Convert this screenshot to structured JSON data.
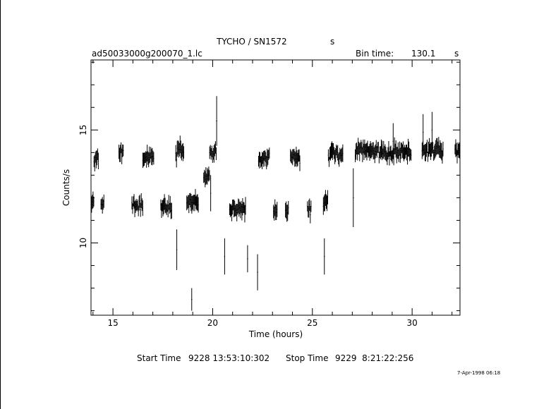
{
  "header": {
    "title": "TYCHO / SN1572",
    "title_unit": "s",
    "file_name": "ad50033000g200070_1.lc",
    "bin_time_label": "Bin time:",
    "bin_time_value": "130.1",
    "bin_time_unit": "s"
  },
  "footer": {
    "start_time_label": "Start Time",
    "start_time_value": "9228 13:53:10:302",
    "stop_time_label": "Stop Time",
    "stop_time_value": "9229  8:21:22:256",
    "print_stamp": "7-Apr-1998 06:18"
  },
  "chart_data": {
    "type": "scatter",
    "style": "light curve with vertical error bars",
    "xlabel": "Time (hours)",
    "ylabel": "Counts/s",
    "xlim": [
      13.9,
      32.4
    ],
    "ylim": [
      6.8,
      18.1
    ],
    "xticks": [
      15,
      20,
      25,
      30
    ],
    "yticks": [
      10,
      15
    ],
    "grid": false,
    "color": "#000000",
    "segments": [
      {
        "name": "seg-1",
        "t_start": 13.93,
        "t_end": 14.05,
        "mean": 11.8,
        "scatter": 0.35
      },
      {
        "name": "seg-2",
        "t_start": 14.05,
        "t_end": 14.3,
        "mean": 13.7,
        "scatter": 0.35
      },
      {
        "name": "seg-3",
        "t_start": 14.4,
        "t_end": 14.55,
        "mean": 11.8,
        "scatter": 0.3
      },
      {
        "name": "seg-4",
        "t_start": 15.3,
        "t_end": 15.52,
        "mean": 14.0,
        "scatter": 0.25
      },
      {
        "name": "seg-5",
        "t_start": 15.95,
        "t_end": 16.5,
        "mean": 11.7,
        "scatter": 0.45
      },
      {
        "name": "seg-6",
        "t_start": 16.5,
        "t_end": 17.05,
        "mean": 13.8,
        "scatter": 0.3
      },
      {
        "name": "seg-7",
        "t_start": 17.4,
        "t_end": 17.95,
        "mean": 11.6,
        "scatter": 0.35
      },
      {
        "name": "seg-8",
        "t_start": 18.15,
        "t_end": 18.55,
        "mean": 14.0,
        "scatter": 0.4
      },
      {
        "name": "seg-9",
        "t_start": 18.7,
        "t_end": 19.3,
        "mean": 11.8,
        "scatter": 0.35
      },
      {
        "name": "seg-10",
        "t_start": 19.55,
        "t_end": 19.85,
        "mean": 12.9,
        "scatter": 0.3
      },
      {
        "name": "seg-11",
        "t_start": 19.85,
        "t_end": 20.2,
        "mean": 14.0,
        "scatter": 0.35
      },
      {
        "name": "seg-12",
        "t_start": 20.85,
        "t_end": 21.65,
        "mean": 11.5,
        "scatter": 0.35
      },
      {
        "name": "seg-13",
        "t_start": 22.3,
        "t_end": 22.85,
        "mean": 13.7,
        "scatter": 0.4
      },
      {
        "name": "seg-14",
        "t_start": 23.05,
        "t_end": 23.25,
        "mean": 11.3,
        "scatter": 0.3
      },
      {
        "name": "seg-15",
        "t_start": 23.65,
        "t_end": 23.8,
        "mean": 11.4,
        "scatter": 0.3
      },
      {
        "name": "seg-16",
        "t_start": 23.9,
        "t_end": 24.4,
        "mean": 13.8,
        "scatter": 0.35
      },
      {
        "name": "seg-17",
        "t_start": 24.75,
        "t_end": 24.95,
        "mean": 11.5,
        "scatter": 0.35
      },
      {
        "name": "seg-18",
        "t_start": 25.55,
        "t_end": 25.8,
        "mean": 11.8,
        "scatter": 0.35
      },
      {
        "name": "seg-19",
        "t_start": 25.8,
        "t_end": 26.55,
        "mean": 13.9,
        "scatter": 0.4
      },
      {
        "name": "seg-20",
        "t_start": 27.15,
        "t_end": 28.5,
        "mean": 14.1,
        "scatter": 0.4
      },
      {
        "name": "seg-21",
        "t_start": 28.5,
        "t_end": 29.95,
        "mean": 14.0,
        "scatter": 0.4
      },
      {
        "name": "seg-22",
        "t_start": 30.5,
        "t_end": 31.55,
        "mean": 14.1,
        "scatter": 0.4
      },
      {
        "name": "seg-23",
        "t_start": 32.15,
        "t_end": 32.4,
        "mean": 14.0,
        "scatter": 0.35
      }
    ],
    "outliers": [
      {
        "t": 18.2,
        "y": 9.7,
        "err": 0.9
      },
      {
        "t": 18.95,
        "y": 7.5,
        "err": 0.5
      },
      {
        "t": 19.9,
        "y": 12.2,
        "err": 0.8
      },
      {
        "t": 20.2,
        "y": 15.4,
        "err": 1.1
      },
      {
        "t": 20.6,
        "y": 9.4,
        "err": 0.8
      },
      {
        "t": 21.75,
        "y": 9.3,
        "err": 0.6
      },
      {
        "t": 22.25,
        "y": 8.7,
        "err": 0.8
      },
      {
        "t": 25.6,
        "y": 9.4,
        "err": 0.8
      },
      {
        "t": 27.05,
        "y": 12.0,
        "err": 1.3
      },
      {
        "t": 29.05,
        "y": 14.5,
        "err": 0.8
      },
      {
        "t": 30.55,
        "y": 14.9,
        "err": 0.8
      },
      {
        "t": 31.0,
        "y": 15.0,
        "err": 0.8
      }
    ]
  }
}
